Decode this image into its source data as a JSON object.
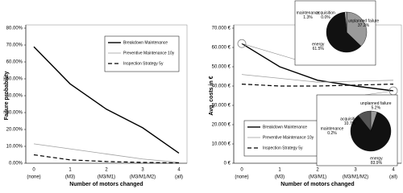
{
  "chart_data": [
    {
      "type": "line",
      "ylabel": "Failure probability",
      "xlabel": "Number of motors changed",
      "categories": [
        "0",
        "1",
        "2",
        "3",
        "4"
      ],
      "category_sublabels": [
        "(none)",
        "(M3)",
        "(M3/M1)",
        "(M3/M1/M2)",
        "(all)"
      ],
      "ylim": [
        0,
        80
      ],
      "yticks": [
        {
          "value": 0,
          "label": "0.00%"
        },
        {
          "value": 10,
          "label": "10.00%"
        },
        {
          "value": 20,
          "label": "20.00%"
        },
        {
          "value": 30,
          "label": "30.00%"
        },
        {
          "value": 40,
          "label": "40.00%"
        },
        {
          "value": 50,
          "label": "50.00%"
        },
        {
          "value": 60,
          "label": "60.00%"
        },
        {
          "value": 70,
          "label": "70.00%"
        },
        {
          "value": 80,
          "label": "80.00%"
        }
      ],
      "grid": false,
      "series": [
        {
          "name": "Breakdown Maintenance",
          "color": "#000000",
          "style": "thick",
          "values": [
            69,
            47,
            32,
            21,
            6
          ]
        },
        {
          "name": "Preventive Maintenance 10y",
          "color": "#a0a0a0",
          "style": "thin",
          "values": [
            11.5,
            8.5,
            5.5,
            2.5,
            0.5
          ]
        },
        {
          "name": "Inspection Strategy 5y",
          "color": "#000000",
          "style": "dashed",
          "values": [
            5,
            2,
            1,
            0.5,
            0.2
          ]
        }
      ]
    },
    {
      "type": "line",
      "ylabel": "Avg. costs in €",
      "xlabel": "Number of motors changed",
      "categories": [
        "0",
        "1",
        "2",
        "3",
        "4"
      ],
      "category_sublabels": [
        "(none)",
        "(M3)",
        "(M3/M1)",
        "(M3/M1/M2)",
        "(all)"
      ],
      "ylim": [
        0,
        70000
      ],
      "yticks": [
        {
          "value": 0,
          "label": "0 €"
        },
        {
          "value": 10000,
          "label": "10.000 €"
        },
        {
          "value": 20000,
          "label": "20.000 €"
        },
        {
          "value": 30000,
          "label": "30.000 €"
        },
        {
          "value": 40000,
          "label": "40.000 €"
        },
        {
          "value": 50000,
          "label": "50.000 €"
        },
        {
          "value": 60000,
          "label": "60.000 €"
        },
        {
          "value": 70000,
          "label": "70.000 €"
        }
      ],
      "grid": false,
      "series": [
        {
          "name": "Breakdown Maintenance",
          "color": "#000000",
          "style": "thick",
          "values": [
            62000,
            50000,
            43000,
            40000,
            37500
          ]
        },
        {
          "name": "Preventive Maintenance 10y",
          "color": "#a0a0a0",
          "style": "thin",
          "values": [
            46000,
            44000,
            42000,
            42500,
            43000
          ]
        },
        {
          "name": "Inspection Strategy 5y",
          "color": "#000000",
          "style": "dashed",
          "values": [
            41000,
            40000,
            40000,
            40500,
            41000
          ]
        }
      ],
      "insets": [
        {
          "type": "pie",
          "series_index": 0,
          "category_index": 0,
          "labels": [
            "unplanned failure",
            "energy",
            "maintenance",
            "acquisition"
          ],
          "values": [
            37.2,
            61.5,
            1.3,
            0.0
          ],
          "value_labels": [
            "37.2%",
            "61.5%",
            "1.3%",
            "0.0%"
          ],
          "colors": [
            "#9a9a9a",
            "#111111",
            "#ffffff",
            "#555555"
          ]
        },
        {
          "type": "pie",
          "series_index": 0,
          "category_index": 4,
          "labels": [
            "unplanned failure",
            "energy",
            "maintenance",
            "acquisition"
          ],
          "values": [
            5.2,
            83.9,
            0.2,
            10.7
          ],
          "value_labels": [
            "5.2%",
            "83.9%",
            "0.2%",
            "10.7%"
          ],
          "colors": [
            "#9a9a9a",
            "#111111",
            "#ffffff",
            "#555555"
          ]
        }
      ]
    }
  ]
}
